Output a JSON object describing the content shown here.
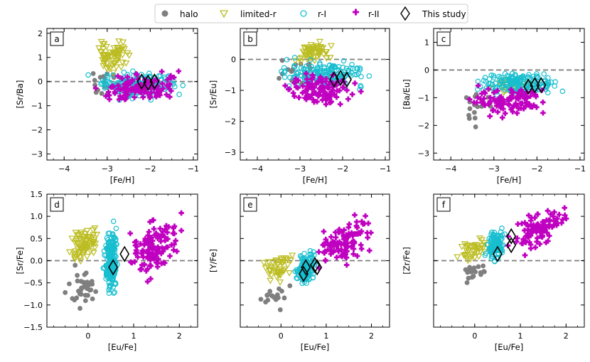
{
  "legend": {
    "entries": [
      {
        "label": "halo",
        "marker": "circle-filled",
        "color": "#7f7f7f"
      },
      {
        "label": "limited-r",
        "marker": "triangle-down-open",
        "color": "#bcbd22"
      },
      {
        "label": "r-I",
        "marker": "circle-open",
        "color": "#17becf"
      },
      {
        "label": "r-II",
        "marker": "plus-filled",
        "color": "#c000c0"
      },
      {
        "label": "This study",
        "marker": "diamond-open",
        "color": "#000000"
      }
    ]
  },
  "colors": {
    "halo": "#7f7f7f",
    "limited_r": "#bcbd22",
    "r_I": "#17becf",
    "r_II": "#c000c0",
    "this_study": "#000000",
    "ref_line": "#7f7f7f"
  },
  "chart_data": [
    {
      "type": "scatter",
      "panel": "a",
      "xlabel": "[Fe/H]",
      "ylabel": "[Sr/Ba]",
      "xlim": [
        -4.4,
        -0.9
      ],
      "ylim": [
        -3.25,
        2.2
      ],
      "xticks": [
        -4,
        -3,
        -2,
        -1
      ],
      "yticks": [
        -3,
        -2,
        -1,
        0,
        1,
        2
      ],
      "hline": 0,
      "clusters": {
        "halo": {
          "x": [
            -3.6,
            -2.6
          ],
          "y": [
            -0.8,
            0.9
          ],
          "n": 18
        },
        "limited_r": {
          "x": [
            -3.3,
            -2.4
          ],
          "y": [
            0.1,
            2.0
          ],
          "n": 70
        },
        "r_I": {
          "x": [
            -3.5,
            -1.1
          ],
          "y": [
            -0.9,
            0.6
          ],
          "n": 180
        },
        "r_II": {
          "x": [
            -3.4,
            -1.1
          ],
          "y": [
            -1.1,
            0.5
          ],
          "n": 110
        }
      },
      "this_study": {
        "x": [
          -2.2,
          -2.05,
          -1.9
        ],
        "y": [
          0.0,
          -0.05,
          0.0
        ]
      }
    },
    {
      "type": "scatter",
      "panel": "b",
      "xlabel": "[Fe/H]",
      "ylabel": "[Sr/Eu]",
      "xlim": [
        -4.4,
        -0.9
      ],
      "ylim": [
        -3.25,
        1.0
      ],
      "xticks": [
        -4,
        -3,
        -2,
        -1
      ],
      "yticks": [
        -3,
        -2,
        -1,
        0
      ],
      "hline": 0,
      "clusters": {
        "halo": {
          "x": [
            -3.6,
            -2.6
          ],
          "y": [
            -1.0,
            0.3
          ],
          "n": 15
        },
        "limited_r": {
          "x": [
            -3.2,
            -2.2
          ],
          "y": [
            -0.2,
            0.7
          ],
          "n": 55
        },
        "r_I": {
          "x": [
            -3.7,
            -1.1
          ],
          "y": [
            -1.1,
            0.1
          ],
          "n": 170
        },
        "r_II": {
          "x": [
            -3.6,
            -1.4
          ],
          "y": [
            -1.7,
            -0.3
          ],
          "n": 110
        }
      },
      "this_study": {
        "x": [
          -2.2,
          -2.05,
          -1.9
        ],
        "y": [
          -0.65,
          -0.6,
          -0.65
        ]
      }
    },
    {
      "type": "scatter",
      "panel": "c",
      "xlabel": "[Fe/H]",
      "ylabel": "[Ba/Eu]",
      "xlim": [
        -4.4,
        -0.9
      ],
      "ylim": [
        -3.25,
        1.5
      ],
      "xticks": [
        -4,
        -3,
        -2,
        -1
      ],
      "yticks": [
        -3,
        -2,
        -1,
        0,
        1
      ],
      "hline": 0,
      "clusters": {
        "halo": {
          "x": [
            -3.9,
            -2.9
          ],
          "y": [
            -2.5,
            -0.4
          ],
          "n": 15
        },
        "limited_r": {
          "x": [
            -3.2,
            -2.0
          ],
          "y": [
            -0.9,
            -0.2
          ],
          "n": 30
        },
        "r_I": {
          "x": [
            -3.6,
            -1.2
          ],
          "y": [
            -1.0,
            0.0
          ],
          "n": 170
        },
        "r_II": {
          "x": [
            -3.8,
            -1.5
          ],
          "y": [
            -1.8,
            -0.5
          ],
          "n": 110
        }
      },
      "this_study": {
        "x": [
          -2.2,
          -2.05,
          -1.9
        ],
        "y": [
          -0.6,
          -0.55,
          -0.55
        ]
      }
    },
    {
      "type": "scatter",
      "panel": "d",
      "xlabel": "[Eu/Fe]",
      "ylabel": "[Sr/Fe]",
      "xlim": [
        -0.9,
        2.4
      ],
      "ylim": [
        -1.5,
        1.5
      ],
      "xticks": [
        0,
        1,
        2
      ],
      "yticks": [
        -1.5,
        -1.0,
        -0.5,
        0.0,
        0.5,
        1.0,
        1.5
      ],
      "ytick_labels": [
        "-1.5",
        "-1.0",
        "-0.5",
        "0.0",
        "0.5",
        "1.0",
        "1.5"
      ],
      "hline": 0,
      "clusters": {
        "halo": {
          "x": [
            -0.6,
            0.3
          ],
          "y": [
            -1.3,
            0.0
          ],
          "n": 35
        },
        "limited_r": {
          "x": [
            -0.5,
            0.3
          ],
          "y": [
            -0.1,
            0.8
          ],
          "n": 80
        },
        "r_I": {
          "x": [
            0.3,
            0.7
          ],
          "y": [
            -0.9,
            0.9
          ],
          "n": 220
        },
        "r_II": {
          "x": [
            0.7,
            2.2
          ],
          "y": [
            -0.6,
            1.2
          ],
          "n": 130
        }
      },
      "this_study": {
        "x": [
          0.55,
          0.8
        ],
        "y": [
          -0.15,
          0.15
        ]
      }
    },
    {
      "type": "scatter",
      "panel": "e",
      "xlabel": "[Eu/Fe]",
      "ylabel": "[Y/Fe]",
      "xlim": [
        -0.9,
        2.4
      ],
      "ylim": [
        -1.5,
        1.5
      ],
      "xticks": [
        0,
        1,
        2
      ],
      "yticks": [],
      "ytick_labels": [],
      "hline": 0,
      "clusters": {
        "halo": {
          "x": [
            -0.6,
            0.4
          ],
          "y": [
            -1.2,
            -0.4
          ],
          "n": 18
        },
        "limited_r": {
          "x": [
            -0.5,
            0.4
          ],
          "y": [
            -0.6,
            0.3
          ],
          "n": 45
        },
        "r_I": {
          "x": [
            0.3,
            0.8
          ],
          "y": [
            -0.6,
            0.3
          ],
          "n": 140
        },
        "r_II": {
          "x": [
            0.6,
            2.2
          ],
          "y": [
            -0.2,
            1.0
          ],
          "n": 110
        }
      },
      "this_study": {
        "x": [
          0.5,
          0.55,
          0.75,
          0.8
        ],
        "y": [
          -0.3,
          -0.15,
          -0.1,
          -0.15
        ]
      }
    },
    {
      "type": "scatter",
      "panel": "f",
      "xlabel": "[Eu/Fe]",
      "ylabel": "[Zr/Fe]",
      "xlim": [
        -0.9,
        2.4
      ],
      "ylim": [
        -1.5,
        1.5
      ],
      "xticks": [
        0,
        1,
        2
      ],
      "yticks": [],
      "ytick_labels": [],
      "hline": 0,
      "clusters": {
        "halo": {
          "x": [
            -0.5,
            0.4
          ],
          "y": [
            -0.6,
            0.1
          ],
          "n": 18
        },
        "limited_r": {
          "x": [
            -0.5,
            0.4
          ],
          "y": [
            -0.1,
            0.6
          ],
          "n": 40
        },
        "r_I": {
          "x": [
            0.2,
            0.7
          ],
          "y": [
            -0.1,
            0.8
          ],
          "n": 120
        },
        "r_II": {
          "x": [
            0.6,
            2.2
          ],
          "y": [
            0.1,
            1.3
          ],
          "n": 100
        }
      },
      "this_study": {
        "x": [
          0.5,
          0.8,
          0.8
        ],
        "y": [
          0.15,
          0.35,
          0.55
        ]
      }
    }
  ]
}
